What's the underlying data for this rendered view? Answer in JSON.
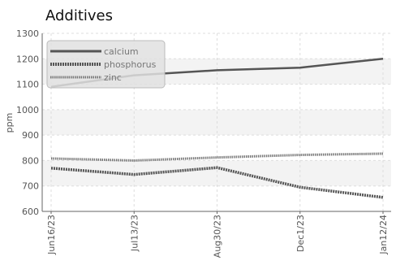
{
  "chart_data": {
    "type": "line",
    "title": "Additives",
    "xlabel": "",
    "ylabel": "ppm",
    "categories": [
      "Jun16/23",
      "Jul13/23",
      "Aug30/23",
      "Dec1/23",
      "Jan12/24"
    ],
    "ylim": [
      600,
      1300
    ],
    "yticks": [
      600,
      700,
      800,
      900,
      1000,
      1100,
      1200,
      1300
    ],
    "grid": true,
    "legend_position": "top-left",
    "series": [
      {
        "name": "calcium",
        "values": [
          1090,
          1135,
          1155,
          1165,
          1200
        ],
        "color": "#555555",
        "style": "solid"
      },
      {
        "name": "phosphorus",
        "values": [
          770,
          745,
          772,
          695,
          655
        ],
        "color": "#555555",
        "style": "dotted"
      },
      {
        "name": "zinc",
        "values": [
          808,
          800,
          812,
          822,
          827
        ],
        "color": "#777777",
        "style": "dotted"
      }
    ]
  }
}
